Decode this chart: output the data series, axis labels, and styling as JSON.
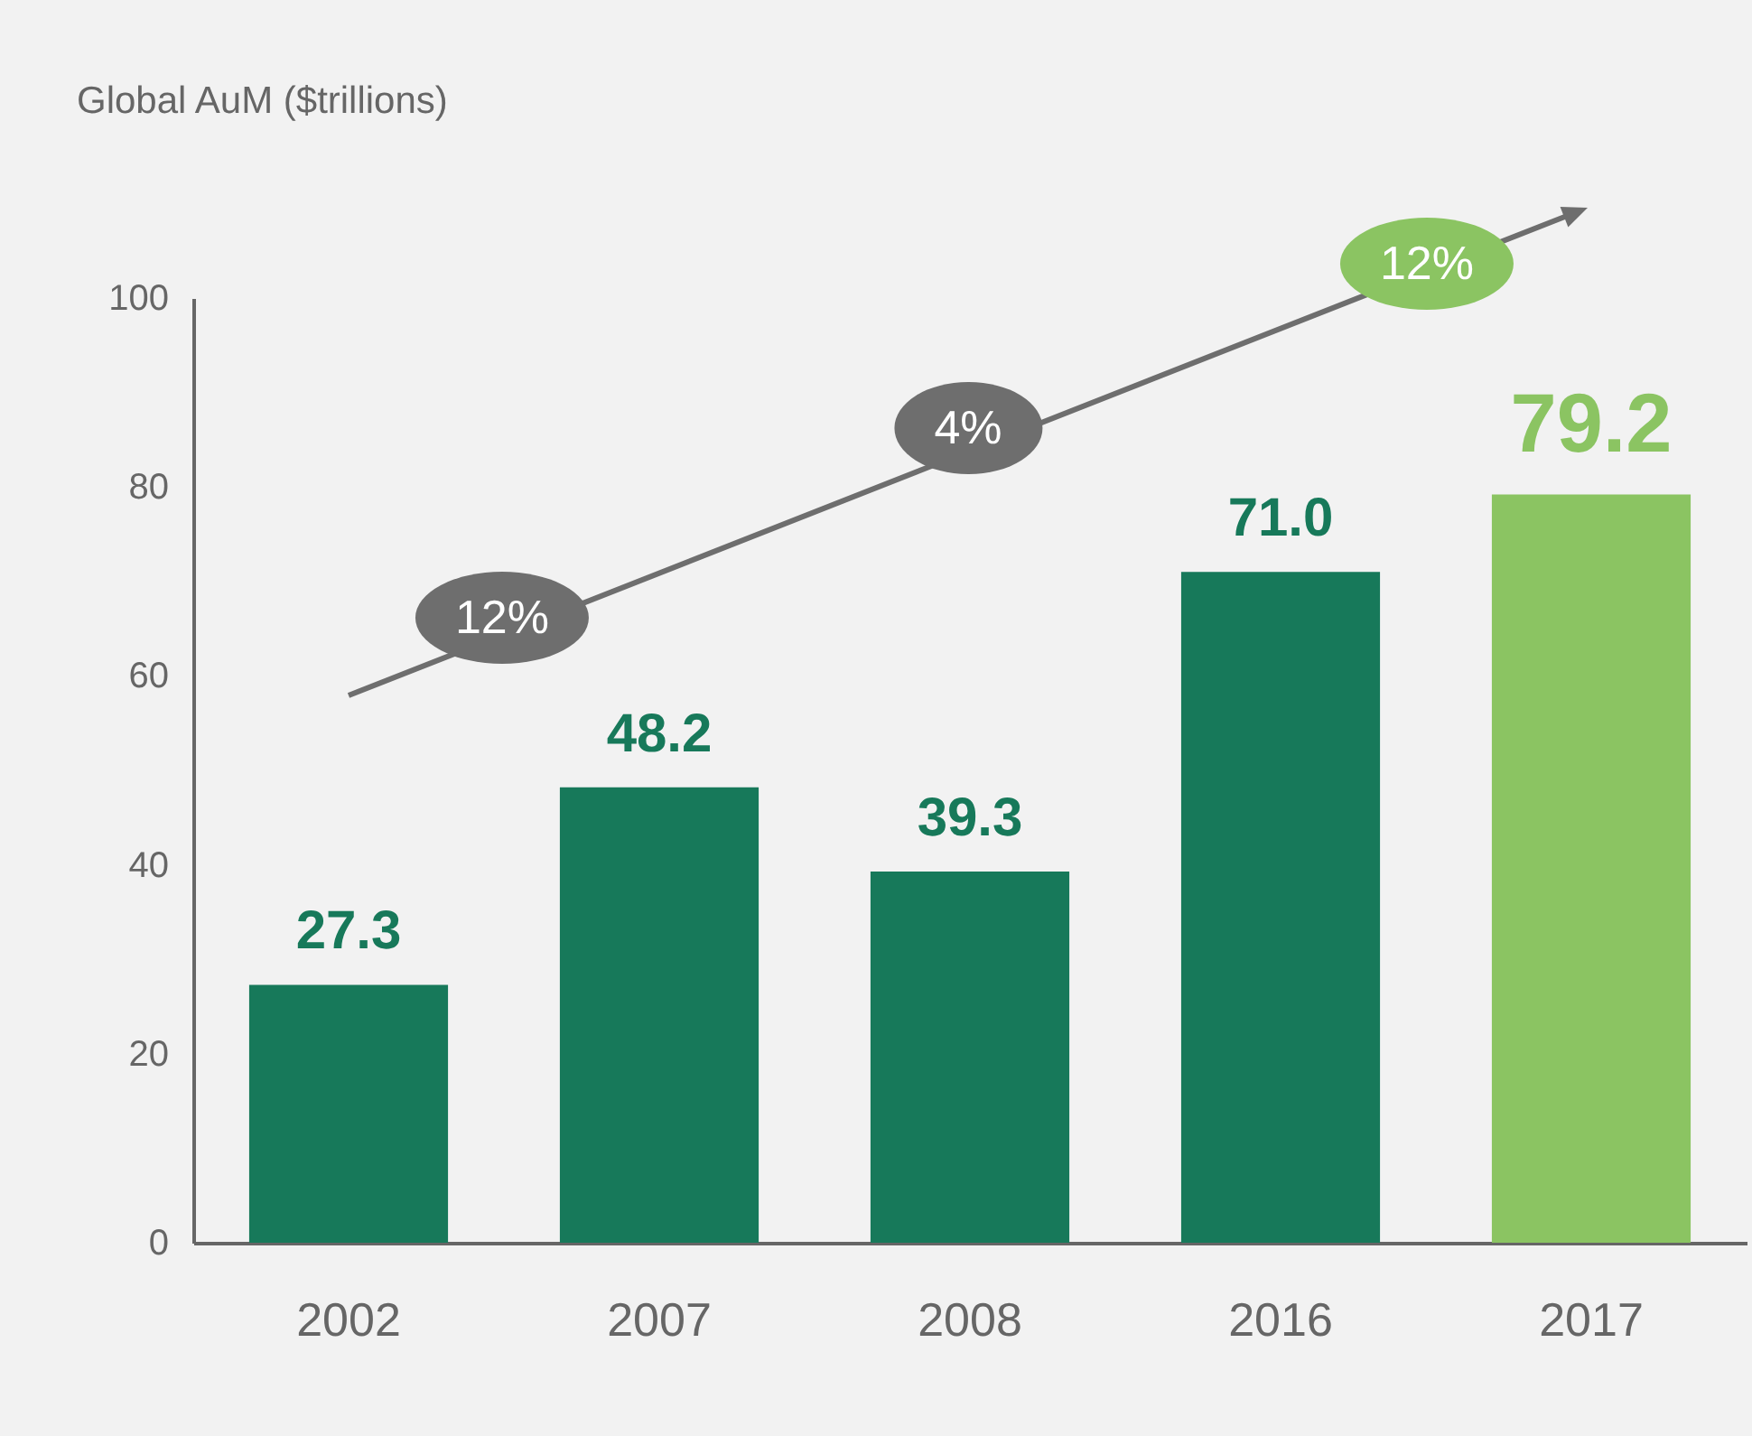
{
  "chart_data": {
    "type": "bar",
    "ylabel": "Global AuM ($trillions)",
    "categories": [
      "2002",
      "2007",
      "2008",
      "2016",
      "2017"
    ],
    "values": [
      27.3,
      48.2,
      39.3,
      71.0,
      79.2
    ],
    "colors": [
      "#17795a",
      "#17795a",
      "#17795a",
      "#17795a",
      "#8bc462"
    ],
    "value_labels": [
      "27.3",
      "48.2",
      "39.3",
      "71.0",
      "79.2"
    ],
    "ylim": [
      0,
      100
    ],
    "yticks": [
      0,
      20,
      40,
      60,
      80,
      100
    ],
    "grid": false,
    "legend": false,
    "annotations": [
      "12%",
      "4%",
      "12%"
    ]
  }
}
